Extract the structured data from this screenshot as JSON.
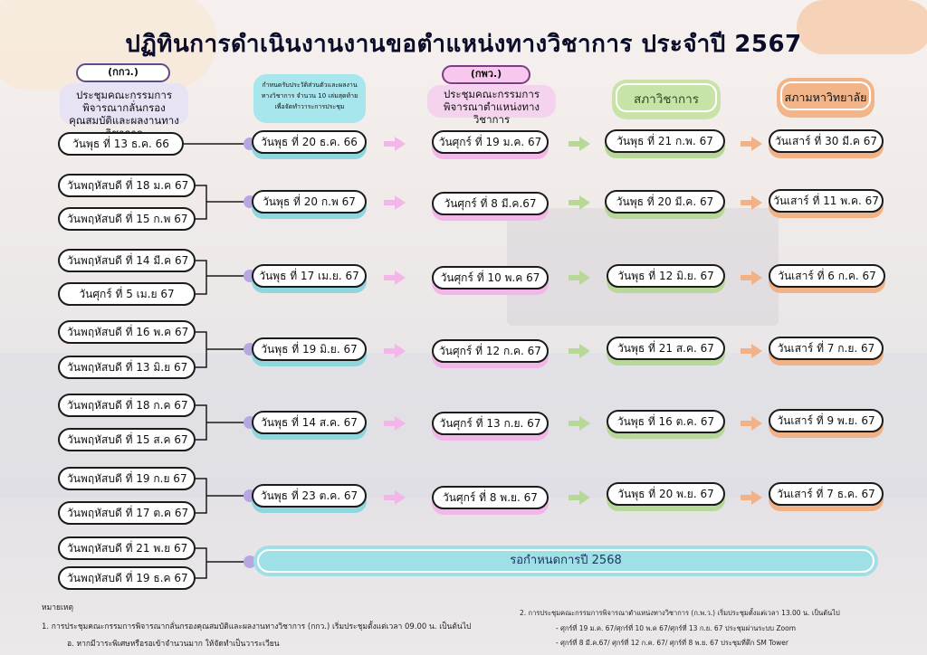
{
  "title": "ปฏิทินการดำเนินงานงานขอตำแหน่งทางวิชาการ ประจำปี 2567",
  "headers": {
    "col1": {
      "badge": "(กกว.)",
      "text": "ประชุมคณะกรรมการพิจารณากลั่นกรองคุณสมบัติและผลงานทางวิชาการ"
    },
    "col2": {
      "text": "กำหนดรับประวัติส่วนตัวและผลงานทางวิชาการ จำนวน 10 เล่มสุดท้าย เพื่อจัดทำวาระการประชุม"
    },
    "col3": {
      "badge": "(กพว.)",
      "text": "ประชุมคณะกรรมการพิจารณาตำแหน่งทางวิชาการ"
    },
    "col4": {
      "text": "สภาวิชาการ"
    },
    "col5": {
      "text": "สภามหาวิทยาลัย"
    }
  },
  "left_dates": [
    "วันพุธ ที่ 13 ธ.ค. 66",
    "วันพฤหัสบดี ที่ 18 ม.ค 67",
    "วันพฤหัสบดี ที่ 15 ก.พ 67",
    "วันพฤหัสบดี ที่ 14 มี.ค 67",
    "วันศุกร์ ที่ 5 เม.ย 67",
    "วันพฤหัสบดี ที่ 16 พ.ค 67",
    "วันพฤหัสบดี ที่ 13 มิ.ย 67",
    "วันพฤหัสบดี ที่ 18 ก.ค 67",
    "วันพฤหัสบดี ที่ 15 ส.ค 67",
    "วันพฤหัสบดี ที่ 19 ก.ย 67",
    "วันพฤหัสบดี ที่ 17 ต.ค 67",
    "วันพฤหัสบดี ที่ 21 พ.ย 67",
    "วันพฤหัสบดี ที่ 19 ธ.ค 67"
  ],
  "rows": [
    {
      "submit": "วันพุธ ที่ 20 ธ.ค. 66",
      "kpw": "วันศุกร์ ที่ 19 ม.ค. 67",
      "council": "วันพุธ ที่ 21 ก.พ. 67",
      "univ": "วันเสาร์ ที่ 30 มี.ค 67"
    },
    {
      "submit": "วันพุธ ที่ 20 ก.พ 67",
      "kpw": "วันศุกร์ ที่ 8 มี.ค.67",
      "council": "วันพุธ ที่ 20 มี.ค. 67",
      "univ": "วันเสาร์ ที่ 11 พ.ค. 67"
    },
    {
      "submit": "วันพุธ ที่ 17 เม.ย. 67",
      "kpw": "วันศุกร์ ที่ 10 พ.ค 67",
      "council": "วันพุธ ที่ 12 มิ.ย. 67",
      "univ": "วันเสาร์ ที่ 6 ก.ค. 67"
    },
    {
      "submit": "วันพุธ ที่ 19 มิ.ย. 67",
      "kpw": "วันศุกร์ ที่ 12 ก.ค. 67",
      "council": "วันพุธ ที่ 21 ส.ค. 67",
      "univ": "วันเสาร์ ที่ 7 ก.ย. 67"
    },
    {
      "submit": "วันพุธ ที่ 14 ส.ค. 67",
      "kpw": "วันศุกร์ ที่ 13 ก.ย. 67",
      "council": "วันพุธ ที่ 16 ต.ค. 67",
      "univ": "วันเสาร์ ที่ 9 พ.ย. 67"
    },
    {
      "submit": "วันพุธ ที่ 23 ต.ค. 67",
      "kpw": "วันศุกร์ ที่ 8 พ.ย. 67",
      "council": "วันพุธ ที่ 20 พ.ย. 67",
      "univ": "วันเสาร์ ที่ 7 ธ.ค. 67"
    }
  ],
  "waiting": "รอกำหนดการปี 2568",
  "notes": {
    "heading": "หมายเหตุ",
    "n1": "1. การประชุมคณะกรรมการพิจารณากลั่นกรองคุณสมบัติและผลงานทางวิชาการ (กกว.) เริ่มประชุมตั้งแต่เวลา 09.00 น. เป็นต้นไป",
    "n1b": "อ. หากมีวาระพิเศษหรือรอเข้าจำนวนมาก ให้จัดทำเป็นวาระเวียน",
    "n2": "2. การประชุมคณะกรรมการพิจารณาตำแหน่งทางวิชาการ (ก.พ.ว.) เริ่มประชุมตั้งแต่เวลา 13.00 น. เป็นต้นไป",
    "n2a": "- ศุกร์ที่ 19 ม.ค. 67/ศุกร์ที่ 10 พ.ค 67/ศุกร์ที่ 13 ก.ย. 67 ประชุมผ่านระบบ Zoom",
    "n2b": "- ศุกร์ที่ 8 มี.ค.67/ ศุกร์ที่ 12 ก.ค. 67/ ศุกร์ที่ 8 พ.ย. 67 ประชุมที่ตึก SM Tower"
  },
  "colors": {
    "teal": "#8fd6de",
    "pink": "#f2b7e8",
    "green": "#b8d89a",
    "orange": "#f1b288",
    "purple": "#b8a6e2"
  }
}
